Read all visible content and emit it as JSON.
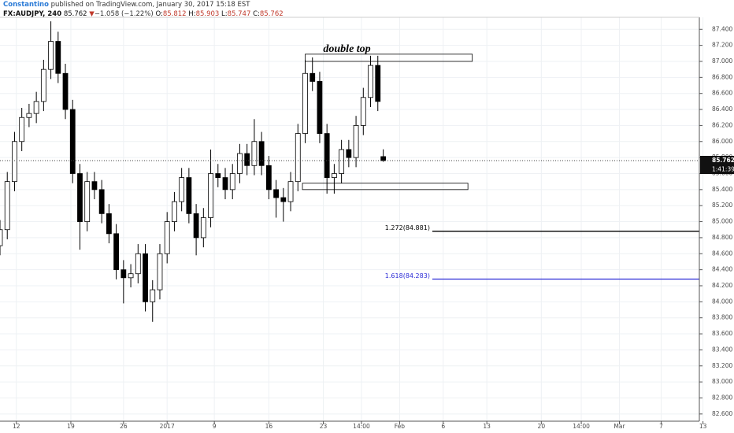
{
  "header": {
    "author": "Constantino",
    "published": "published on TradingView.com, January 30, 2017 15:18 EST",
    "symbol": "FX:AUDJPY, 240",
    "last": "85.762",
    "arrow": "▼",
    "change": "−1.058 (−1.22%)",
    "ohlc": [
      {
        "key": "O:",
        "value": "85.812"
      },
      {
        "key": "H:",
        "value": "85.903"
      },
      {
        "key": "L:",
        "value": "85.747"
      },
      {
        "key": "C:",
        "value": "85.762"
      }
    ]
  },
  "chart_data": {
    "type": "candlestick",
    "color": "#000000",
    "grid": true,
    "grid_color": "#eef1f4",
    "x": [
      0,
      4,
      8,
      12,
      16,
      20,
      24,
      28,
      32,
      36,
      40,
      44,
      48,
      52,
      56,
      60,
      64,
      68,
      72,
      76,
      80,
      84,
      88,
      92,
      96,
      100,
      104,
      108,
      112,
      116,
      120,
      124,
      128,
      132,
      136,
      140,
      144,
      148,
      152,
      156,
      160,
      164,
      168,
      172,
      176,
      180,
      184,
      188,
      192,
      196,
      200,
      204,
      208,
      211
    ],
    "open": [
      84.7,
      84.9,
      85.5,
      86.0,
      86.3,
      86.35,
      86.5,
      86.9,
      87.25,
      86.85,
      86.4,
      85.6,
      85.0,
      85.5,
      85.4,
      85.1,
      84.85,
      84.4,
      84.3,
      84.35,
      84.6,
      84.0,
      84.15,
      84.6,
      85.0,
      85.25,
      85.55,
      85.1,
      84.8,
      85.05,
      85.6,
      85.55,
      85.4,
      85.6,
      85.85,
      85.7,
      86.0,
      85.7,
      85.4,
      85.3,
      85.25,
      85.5,
      86.1,
      86.85,
      86.75,
      86.1,
      85.55,
      85.6,
      85.9,
      85.8,
      86.2,
      86.55,
      86.95,
      85.812
    ],
    "high": [
      85.02,
      85.62,
      86.12,
      86.42,
      86.47,
      86.62,
      87.02,
      87.5,
      87.37,
      86.97,
      86.52,
      85.72,
      85.62,
      85.62,
      85.52,
      85.22,
      84.97,
      84.52,
      84.47,
      84.72,
      84.72,
      84.27,
      84.72,
      85.12,
      85.37,
      85.67,
      85.67,
      85.22,
      85.17,
      85.9,
      85.72,
      85.67,
      85.72,
      85.97,
      85.97,
      86.28,
      86.12,
      85.82,
      85.52,
      85.42,
      85.62,
      86.22,
      87.02,
      87.05,
      86.87,
      86.22,
      85.72,
      86.02,
      86.02,
      86.32,
      86.67,
      87.07,
      87.07,
      85.903
    ],
    "low": [
      84.58,
      84.78,
      85.38,
      85.88,
      86.18,
      86.23,
      86.38,
      86.78,
      86.73,
      86.28,
      85.48,
      84.65,
      84.88,
      85.28,
      84.98,
      84.73,
      84.28,
      83.98,
      84.18,
      84.23,
      83.88,
      83.75,
      84.03,
      84.48,
      84.88,
      85.13,
      84.98,
      84.58,
      84.68,
      84.93,
      85.43,
      85.28,
      85.28,
      85.48,
      85.58,
      85.58,
      85.58,
      85.28,
      85.05,
      85.0,
      85.13,
      85.38,
      85.98,
      86.63,
      85.98,
      85.35,
      85.35,
      85.48,
      85.68,
      85.68,
      86.08,
      86.43,
      86.38,
      85.747
    ],
    "close": [
      84.9,
      85.5,
      86.0,
      86.3,
      86.35,
      86.5,
      86.9,
      87.25,
      86.85,
      86.4,
      85.6,
      85.0,
      85.5,
      85.4,
      85.1,
      84.85,
      84.4,
      84.3,
      84.35,
      84.6,
      84.0,
      84.15,
      84.6,
      85.0,
      85.25,
      85.55,
      85.1,
      84.8,
      85.05,
      85.6,
      85.55,
      85.4,
      85.6,
      85.85,
      85.7,
      86.0,
      85.7,
      85.4,
      85.3,
      85.25,
      85.5,
      86.1,
      86.85,
      86.75,
      86.1,
      85.55,
      85.6,
      85.9,
      85.8,
      86.2,
      86.55,
      86.95,
      86.5,
      85.762
    ],
    "countdown": "1:41:39",
    "xlim": [
      0,
      385
    ],
    "ylim": [
      82.51,
      87.55
    ],
    "xticks": [
      {
        "value": 9,
        "label": "12"
      },
      {
        "value": 39,
        "label": "19"
      },
      {
        "value": 68,
        "label": "26"
      },
      {
        "value": 92,
        "label": "2017"
      },
      {
        "value": 118,
        "label": "9"
      },
      {
        "value": 148,
        "label": "16"
      },
      {
        "value": 178,
        "label": "23"
      },
      {
        "value": 199,
        "label": "14:00"
      },
      {
        "value": 220,
        "label": "Feb"
      },
      {
        "value": 244,
        "label": "6"
      },
      {
        "value": 268,
        "label": "13"
      },
      {
        "value": 298,
        "label": "20"
      },
      {
        "value": 320,
        "label": "14:00"
      },
      {
        "value": 341,
        "label": "Mar"
      },
      {
        "value": 364,
        "label": "7"
      },
      {
        "value": 387,
        "label": "13"
      }
    ],
    "yticks": [
      {
        "value": 82.6,
        "label": "82.600"
      },
      {
        "value": 82.8,
        "label": "82.800"
      },
      {
        "value": 83.0,
        "label": "83.000"
      },
      {
        "value": 83.2,
        "label": "83.200"
      },
      {
        "value": 83.4,
        "label": "83.400"
      },
      {
        "value": 83.6,
        "label": "83.600"
      },
      {
        "value": 83.8,
        "label": "83.800"
      },
      {
        "value": 84.0,
        "label": "84.000"
      },
      {
        "value": 84.2,
        "label": "84.200"
      },
      {
        "value": 84.4,
        "label": "84.400"
      },
      {
        "value": 84.6,
        "label": "84.600"
      },
      {
        "value": 84.8,
        "label": "84.800"
      },
      {
        "value": 85.0,
        "label": "85.000"
      },
      {
        "value": 85.2,
        "label": "85.200"
      },
      {
        "value": 85.4,
        "label": "85.400"
      },
      {
        "value": 85.6,
        "label": "85.600"
      },
      {
        "value": 85.8,
        "label": "85.800"
      },
      {
        "value": 86.0,
        "label": "86.000"
      },
      {
        "value": 86.2,
        "label": "86.200"
      },
      {
        "value": 86.4,
        "label": "86.400"
      },
      {
        "value": 86.6,
        "label": "86.600"
      },
      {
        "value": 86.8,
        "label": "86.800"
      },
      {
        "value": 87.0,
        "label": "87.000"
      },
      {
        "value": 87.2,
        "label": "87.200"
      },
      {
        "value": 87.4,
        "label": "87.400"
      }
    ],
    "rectangles": [
      {
        "x": [
          168,
          260
        ],
        "y": [
          87.0,
          87.09
        ]
      },
      {
        "x": [
          166.5,
          257.6
        ],
        "y": [
          85.4,
          85.48
        ]
      }
    ],
    "annotations": [
      {
        "text": "double top",
        "x": 191,
        "y": 87.15
      }
    ],
    "fib_levels": [
      {
        "label": "1.272(84.881)",
        "value": 84.881,
        "color": "#000000",
        "x": 238
      },
      {
        "label": "1.618(84.283)",
        "value": 84.283,
        "color": "#2b2bd6",
        "x": 238
      }
    ]
  }
}
